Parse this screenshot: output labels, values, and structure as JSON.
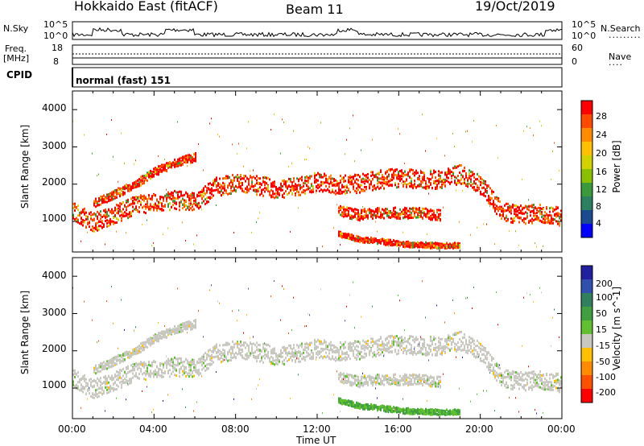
{
  "header": {
    "station": "Hokkaido East (fitACF)",
    "beam": "Beam 11",
    "date": "19/Oct/2019"
  },
  "top_panel": {
    "nsky_label": "N.Sky",
    "nsearch_label": "N.Search",
    "noise_ticks_left": [
      "10^5",
      "10^0"
    ],
    "noise_ticks_right": [
      "10^5",
      "10^0"
    ],
    "freq_label": "Freq.",
    "freq_unit": "[MHz]",
    "freq_ticks": [
      "18",
      "8"
    ],
    "nave_label": "Nave",
    "nave_ticks": [
      "60",
      "0"
    ],
    "cpid_label": "CPID",
    "cpid_text": "normal (fast) 151"
  },
  "chart_data": [
    {
      "type": "heatmap",
      "title": "",
      "xlabel": "Time UT",
      "ylabel": "Slant Range [km]",
      "x_ticks": [
        "00:00",
        "04:00",
        "08:00",
        "12:00",
        "16:00",
        "20:00",
        "00:00"
      ],
      "y_ticks": [
        "4000",
        "3000",
        "2000",
        "1000"
      ],
      "ylim": [
        180,
        4500
      ],
      "colorbar": {
        "label": "Power [dB]",
        "ticks": [
          "28",
          "24",
          "20",
          "16",
          "12",
          "8",
          "4"
        ],
        "colors": [
          "#ff0000",
          "#ff4a00",
          "#ff8c00",
          "#ffc000",
          "#d2d200",
          "#8ac000",
          "#3a9a3a",
          "#2a8060",
          "#1a4a90",
          "#0000ff"
        ]
      },
      "bands": [
        {
          "name": "lower",
          "points": [
            [
              0,
              1300
            ],
            [
              1,
              1000
            ],
            [
              2,
              1200
            ],
            [
              3,
              1450
            ],
            [
              4,
              1550
            ],
            [
              5,
              1600
            ],
            [
              6,
              1550
            ],
            [
              7,
              1950
            ],
            [
              8,
              2050
            ],
            [
              9,
              2000
            ],
            [
              10,
              1900
            ],
            [
              11,
              1950
            ],
            [
              12,
              2100
            ],
            [
              13,
              2000
            ],
            [
              14,
              2050
            ],
            [
              15,
              2150
            ],
            [
              16,
              2200
            ],
            [
              17,
              2150
            ],
            [
              18,
              2150
            ],
            [
              19,
              2300
            ],
            [
              20,
              2000
            ],
            [
              21,
              1300
            ],
            [
              22,
              1200
            ],
            [
              23,
              1250
            ],
            [
              24,
              1150
            ]
          ],
          "thickness": 500
        },
        {
          "name": "upper",
          "points": [
            [
              1,
              1500
            ],
            [
              2,
              1750
            ],
            [
              3,
              2000
            ],
            [
              4,
              2350
            ],
            [
              5,
              2600
            ],
            [
              6,
              2750
            ]
          ],
          "thickness": 230
        },
        {
          "name": "mid",
          "points": [
            [
              13,
              1300
            ],
            [
              14,
              1200
            ],
            [
              15,
              1250
            ],
            [
              16,
              1250
            ],
            [
              17,
              1250
            ],
            [
              18,
              1200
            ]
          ],
          "thickness": 300
        },
        {
          "name": "low",
          "points": [
            [
              13,
              700
            ],
            [
              14,
              550
            ],
            [
              15,
              500
            ],
            [
              16,
              430
            ],
            [
              17,
              400
            ],
            [
              18,
              380
            ],
            [
              19,
              380
            ]
          ],
          "thickness": 150
        }
      ]
    },
    {
      "type": "heatmap",
      "title": "",
      "xlabel": "Time UT",
      "ylabel": "Slant Range [km]",
      "x_ticks": [
        "00:00",
        "04:00",
        "08:00",
        "12:00",
        "16:00",
        "20:00",
        "00:00"
      ],
      "y_ticks": [
        "4000",
        "3000",
        "2000",
        "1000"
      ],
      "ylim": [
        180,
        4500
      ],
      "colorbar": {
        "label": "Velocity [m s^-1]",
        "ticks": [
          "200",
          "100",
          "50",
          "15",
          "-15",
          "-50",
          "-100",
          "-200"
        ],
        "colors": [
          "#2020a0",
          "#3050b0",
          "#308060",
          "#40a040",
          "#60c030",
          "#c8c8c0",
          "#ffc000",
          "#ff8c00",
          "#ff5000",
          "#ff0000"
        ]
      }
    }
  ]
}
